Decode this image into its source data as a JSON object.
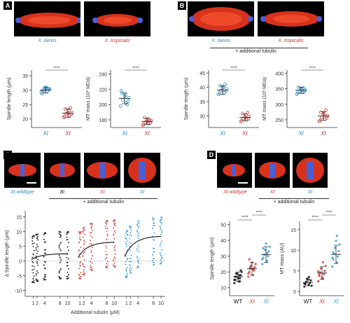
{
  "panels": {
    "A": {
      "letter": "A",
      "image_captions": [
        "X. laevis",
        "X. tropicalis"
      ],
      "plots": [
        {
          "ylabel": "Spindle length (μm)",
          "yticks": [
            "20",
            "25",
            "30",
            "35"
          ],
          "xticks": [
            "Xl",
            "Xt"
          ],
          "signif": "****",
          "ylim": [
            17,
            37
          ],
          "groups": [
            {
              "name": "Xl",
              "mean": 30,
              "sd": 1,
              "points": [
                29.2,
                29.6,
                30.1,
                30.4,
                30.8,
                29.9,
                30.2,
                31,
                28.8,
                30.5
              ]
            },
            {
              "name": "Xt",
              "mean": 22,
              "sd": 1.5,
              "points": [
                20.5,
                21.2,
                21.8,
                22.3,
                22.9,
                23.4,
                21.6,
                22.1,
                20.9,
                23.8
              ]
            }
          ]
        },
        {
          "ylabel": "MT mass (10³ MDa)",
          "yticks": [
            "180",
            "200",
            "220",
            "240"
          ],
          "xticks": [
            "Xl",
            "Xt"
          ],
          "signif": "****",
          "ylim": [
            170,
            245
          ],
          "groups": [
            {
              "name": "Xl",
              "mean": 208,
              "sd": 7,
              "points": [
                198,
                202,
                206,
                209,
                212,
                215,
                204,
                211,
                218,
                200
              ]
            },
            {
              "name": "Xt",
              "mean": 178,
              "sd": 4,
              "points": [
                173,
                175,
                177,
                179,
                181,
                183,
                176,
                178,
                174,
                180
              ]
            }
          ]
        }
      ]
    },
    "B": {
      "letter": "B",
      "image_captions": [
        "X. laevis",
        "X. tropicalis"
      ],
      "header": "+ additional tubulin",
      "plots": [
        {
          "ylabel": "Spindle length (μm)",
          "yticks": [
            "30",
            "35",
            "40",
            "45"
          ],
          "xticks": [
            "Xl",
            "Xt"
          ],
          "signif": "****",
          "ylim": [
            26,
            46
          ],
          "groups": [
            {
              "name": "Xl",
              "mean": 39,
              "sd": 1.5,
              "points": [
                37.5,
                38.2,
                38.9,
                39.4,
                40.1,
                40.6,
                38.7,
                39.8,
                37.9,
                41
              ]
            },
            {
              "name": "Xt",
              "mean": 29.5,
              "sd": 1.2,
              "points": [
                28.1,
                28.7,
                29.2,
                29.8,
                30.3,
                30.9,
                29,
                29.6,
                28.4,
                31.2
              ]
            }
          ]
        },
        {
          "ylabel": "MT mass (10³ MDa)",
          "yticks": [
            "250",
            "300",
            "350",
            "400"
          ],
          "xticks": [
            "Xl",
            "Xt"
          ],
          "signif": "****",
          "ylim": [
            225,
            410
          ],
          "groups": [
            {
              "name": "Xl",
              "mean": 345,
              "sd": 10,
              "points": [
                332,
                338,
                342,
                346,
                350,
                354,
                340,
                348,
                336,
                352
              ]
            },
            {
              "name": "Xt",
              "mean": 262,
              "sd": 14,
              "points": [
                245,
                252,
                258,
                263,
                268,
                274,
                256,
                270,
                248,
                281
              ]
            }
          ]
        }
      ]
    },
    "C": {
      "letter": "C",
      "image_labels": [
        "Xt wildtype",
        "Bi",
        "Xt",
        "Xl"
      ],
      "header": "+ additional tubulin",
      "plot": {
        "ylabel": "Δ Spindle length (μm)",
        "xlabel": "Additional tubulin (μM)",
        "yticks": [
          "-10",
          "-5",
          "0",
          "5",
          "10",
          "15"
        ],
        "ylim": [
          -12,
          17
        ],
        "groups": [
          {
            "name": "Bi",
            "color": "#111111",
            "xticks": [
              "1",
              "2",
              "4",
              "8",
              "10"
            ],
            "plateau": 2,
            "curve_end": 2.5
          },
          {
            "name": "Xt",
            "color": "#d43a3a",
            "xticks": [
              "1",
              "2",
              "4",
              "8",
              "10"
            ],
            "plateau": 6,
            "curve_end": 6.5
          },
          {
            "name": "Xl",
            "color": "#3a9bd4",
            "xticks": [
              "1",
              "2",
              "4",
              "8",
              "10"
            ],
            "plateau": 7,
            "curve_end": 8.5
          }
        ]
      }
    },
    "D": {
      "letter": "D",
      "image_labels": [
        "Xt wildtype",
        "Xt",
        "Xl"
      ],
      "header": "+ additional tubulin",
      "plots": [
        {
          "ylabel": "Spindle length (μm)",
          "yticks": [
            "10",
            "20",
            "30",
            "40",
            "50"
          ],
          "xticks": [
            "WT",
            "Xt",
            "Xl"
          ],
          "signif": [
            "****",
            "****"
          ],
          "ylim": [
            5,
            52
          ],
          "groups": [
            {
              "name": "WT",
              "color": "#111111",
              "mean": 17,
              "sd": 3,
              "points": [
                13,
                14,
                15,
                16,
                17,
                18,
                19,
                20,
                16,
                15,
                18,
                17,
                14,
                19,
                21
              ]
            },
            {
              "name": "Xt",
              "color": "#d43a3a",
              "mean": 22,
              "sd": 4,
              "points": [
                17,
                18,
                20,
                21,
                22,
                23,
                24,
                25,
                26,
                19,
                22,
                28,
                21,
                23
              ]
            },
            {
              "name": "Xl",
              "color": "#3a9bd4",
              "mean": 31,
              "sd": 5,
              "points": [
                25,
                27,
                29,
                30,
                31,
                33,
                34,
                36,
                38,
                28,
                32,
                35
              ]
            }
          ]
        },
        {
          "ylabel": "MT mass (AU)",
          "yticks": [
            "0",
            "5",
            "10",
            "15"
          ],
          "xticks": [
            "WT",
            "Xt",
            "Xl"
          ],
          "signif": [
            "****",
            "****"
          ],
          "ylim": [
            -1,
            17
          ],
          "groups": [
            {
              "name": "WT",
              "color": "#111111",
              "mean": 2.2,
              "sd": 0.8,
              "points": [
                1.2,
                1.6,
                1.9,
                2.1,
                2.4,
                2.7,
                3.1,
                1.4,
                2.9,
                2,
                3.5,
                1.8
              ]
            },
            {
              "name": "Xt",
              "color": "#d43a3a",
              "mean": 4.5,
              "sd": 1.5,
              "points": [
                2.5,
                3.1,
                3.8,
                4.2,
                4.6,
                5,
                5.6,
                6.2,
                3.4,
                4.9,
                7.1,
                4.1
              ]
            },
            {
              "name": "Xl",
              "color": "#3a9bd4",
              "mean": 9,
              "sd": 2.2,
              "points": [
                6,
                7,
                7.8,
                8.5,
                9.1,
                9.8,
                10.6,
                11.4,
                12.3,
                8.2,
                13.5,
                9.5
              ]
            }
          ]
        }
      ]
    }
  }
}
